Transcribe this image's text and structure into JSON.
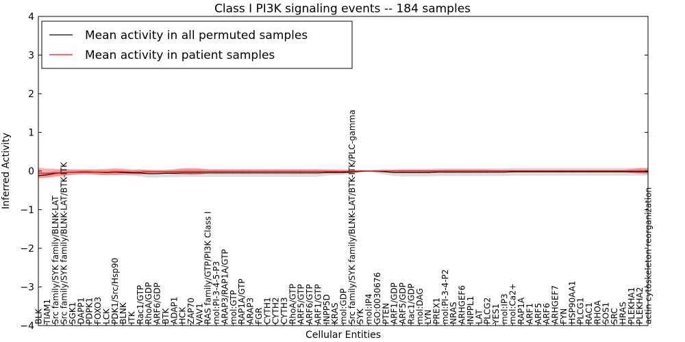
{
  "chart_data": {
    "type": "line",
    "title": "Class I PI3K signaling events -- 184 samples",
    "xlabel": "Cellular Entities",
    "ylabel": "Inferred Activity",
    "ylim": [
      -4,
      4
    ],
    "yticks": [
      "4",
      "3",
      "2",
      "1",
      "0",
      "−1",
      "−2",
      "−3",
      "−4"
    ],
    "yticks_values": [
      4,
      3,
      2,
      1,
      0,
      -1,
      -2,
      -3,
      -4
    ],
    "legend_position": "top-left",
    "grid": false,
    "categories": [
      "BLK",
      "TIAM1",
      "Src family/SYK family/BLNK-LAT",
      "Src family/SYK family/BLNK-LAT/BTK-ITK",
      "SGK1",
      "DAPP1",
      "PDPK1",
      "FOXO3",
      "LCK",
      "PDK1/Src/Hsp90",
      "BLNK",
      "ITK",
      "Rac1/GTP",
      "RhoA/GDP",
      "ARF6/GDP",
      "BTK",
      "ADAP1",
      "HCK",
      "ZAP70",
      "VAV1",
      "RAS family/GTP/PI3K Class I",
      "mol:PI-3-4-5-P3",
      "ARAP3/RAP1A/GTP",
      "mol:GTP",
      "RAP1A/GTP",
      "ARAP3",
      "FGR",
      "CYTH1",
      "CYTH2",
      "CYTH3",
      "RhoA/GTP",
      "ARF5/GTP",
      "ARF6/GTP",
      "ARF1/GTP",
      "INPP5D",
      "KRAS",
      "mol:GDP",
      "Src family/SYK family/BLNK-LAT/BTK-ITK/PLC-gamma",
      "SYK",
      "mol:IP4",
      "GO:0030676",
      "PTEN",
      "ARF1/GDP",
      "ARF5/GDP",
      "Rac1/GDP",
      "mol:DAG",
      "LYN",
      "PREX1",
      "mol:PI-3-4-P2",
      "NRAS",
      "ARHGEF6",
      "INPPL1",
      "LAT",
      "PLCG2",
      "YES1",
      "mol:IP3",
      "mol:Ca2+",
      "RAP1A",
      "ARF1",
      "ARF5",
      "ARF6",
      "ARHGEF7",
      "FYN",
      "HSP90AA1",
      "PLCG1",
      "RAC1",
      "RHOA",
      "SOS1",
      "SRC",
      "HRAS",
      "PLEKHA1",
      "PLEKHA2",
      "actin cytoskeleton reorganization"
    ],
    "series": [
      {
        "name": "Mean activity in all permuted samples",
        "color": "#000000",
        "values": [
          -0.12,
          -0.1,
          -0.06,
          -0.04,
          -0.03,
          -0.03,
          -0.03,
          -0.03,
          -0.04,
          -0.03,
          -0.04,
          -0.05,
          -0.05,
          -0.07,
          -0.07,
          -0.06,
          -0.06,
          -0.05,
          -0.05,
          -0.05,
          -0.05,
          -0.05,
          -0.05,
          -0.05,
          -0.05,
          -0.05,
          -0.05,
          -0.05,
          -0.05,
          -0.05,
          -0.05,
          -0.05,
          -0.05,
          -0.05,
          -0.04,
          -0.04,
          -0.04,
          -0.03,
          -0.01,
          0.0,
          -0.01,
          -0.02,
          -0.04,
          -0.04,
          -0.04,
          -0.04,
          -0.04,
          -0.03,
          -0.03,
          -0.03,
          -0.03,
          -0.03,
          -0.03,
          -0.03,
          -0.03,
          -0.03,
          -0.02,
          -0.02,
          -0.02,
          -0.02,
          -0.02,
          -0.02,
          -0.02,
          -0.02,
          -0.02,
          -0.02,
          -0.02,
          -0.02,
          -0.02,
          -0.02,
          -0.02,
          -0.02,
          -0.02
        ],
        "band": [
          0.06,
          0.06,
          0.07,
          0.07,
          0.07,
          0.07,
          0.07,
          0.07,
          0.07,
          0.07,
          0.07,
          0.08,
          0.09,
          0.1,
          0.1,
          0.1,
          0.1,
          0.1,
          0.1,
          0.1,
          0.1,
          0.1,
          0.1,
          0.1,
          0.1,
          0.1,
          0.1,
          0.1,
          0.1,
          0.1,
          0.1,
          0.1,
          0.1,
          0.1,
          0.08,
          0.07,
          0.06,
          0.05,
          0.03,
          0.02,
          0.05,
          0.08,
          0.09,
          0.1,
          0.1,
          0.1,
          0.1,
          0.1,
          0.1,
          0.1,
          0.1,
          0.1,
          0.1,
          0.1,
          0.1,
          0.1,
          0.1,
          0.1,
          0.1,
          0.1,
          0.1,
          0.1,
          0.1,
          0.1,
          0.1,
          0.1,
          0.1,
          0.1,
          0.1,
          0.1,
          0.1,
          0.1,
          0.1
        ]
      },
      {
        "name": "Mean activity in patient samples",
        "color": "#ff0000",
        "values": [
          -0.05,
          -0.06,
          -0.05,
          -0.04,
          -0.03,
          -0.02,
          -0.02,
          -0.03,
          -0.03,
          -0.02,
          -0.02,
          -0.03,
          -0.03,
          -0.02,
          -0.02,
          -0.02,
          -0.02,
          -0.01,
          -0.01,
          -0.01,
          -0.01,
          -0.01,
          -0.01,
          -0.01,
          -0.01,
          -0.01,
          -0.01,
          -0.01,
          -0.01,
          -0.01,
          -0.01,
          -0.01,
          -0.01,
          -0.01,
          -0.01,
          -0.01,
          -0.01,
          -0.01,
          0.0,
          0.0,
          0.0,
          0.0,
          0.0,
          0.0,
          0.0,
          0.0,
          0.0,
          0.0,
          0.0,
          0.0,
          0.0,
          0.0,
          0.0,
          0.0,
          0.0,
          0.0,
          0.0,
          0.0,
          0.0,
          0.0,
          0.0,
          0.0,
          0.0,
          0.0,
          0.0,
          0.0,
          0.0,
          0.0,
          0.0,
          0.0,
          0.0,
          0.0,
          0.0
        ],
        "band": [
          0.14,
          0.12,
          0.1,
          0.09,
          0.07,
          0.06,
          0.06,
          0.07,
          0.08,
          0.09,
          0.08,
          0.06,
          0.07,
          0.05,
          0.04,
          0.04,
          0.06,
          0.08,
          0.09,
          0.08,
          0.05,
          0.05,
          0.05,
          0.05,
          0.05,
          0.05,
          0.05,
          0.05,
          0.05,
          0.05,
          0.05,
          0.05,
          0.05,
          0.05,
          0.05,
          0.05,
          0.05,
          0.04,
          0.02,
          0.01,
          0.01,
          0.01,
          0.02,
          0.03,
          0.03,
          0.03,
          0.03,
          0.03,
          0.04,
          0.04,
          0.04,
          0.04,
          0.04,
          0.04,
          0.03,
          0.03,
          0.03,
          0.03,
          0.03,
          0.03,
          0.03,
          0.03,
          0.03,
          0.03,
          0.03,
          0.03,
          0.03,
          0.03,
          0.03,
          0.03,
          0.05,
          0.07,
          0.08
        ]
      }
    ]
  }
}
